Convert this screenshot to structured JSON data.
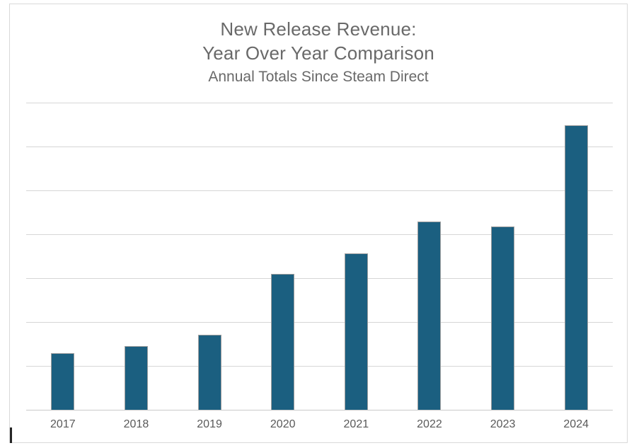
{
  "chart": {
    "title_line1": "New Release Revenue:",
    "title_line2": "Year Over Year Comparison",
    "subtitle": "Annual Totals Since Steam Direct"
  },
  "colors": {
    "bar_fill": "#1B5F80",
    "bar_border": "#9E9E9E",
    "gridline": "#D6D6D6",
    "axis_line": "#C9C9C9",
    "frame_border": "#D9D9D9",
    "title_text": "#696969",
    "axis_label_text": "#595959"
  },
  "chart_data": {
    "type": "bar",
    "title": "New Release Revenue: Year Over Year Comparison",
    "subtitle": "Annual Totals Since Steam Direct",
    "categories": [
      "2017",
      "2018",
      "2019",
      "2020",
      "2021",
      "2022",
      "2023",
      "2024"
    ],
    "values": [
      1.29,
      1.45,
      1.71,
      3.1,
      3.56,
      4.29,
      4.18,
      6.48
    ],
    "value_units": "relative gridline units (y-axis has no visible tick labels; 1 unit = 1 gridline division)",
    "xlabel": "",
    "ylabel": "",
    "ylim": [
      0,
      7
    ],
    "gridline_interval": 1,
    "grid": "horizontal gridlines on, unlabeled",
    "legend": "none",
    "series_color": "#1B5F80"
  }
}
